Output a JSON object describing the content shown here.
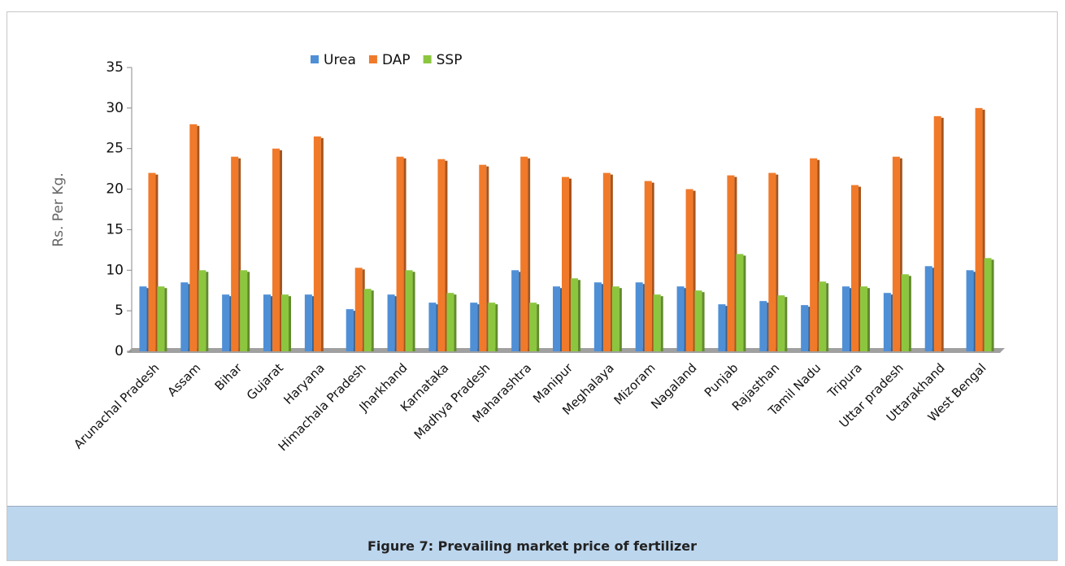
{
  "chart_data": {
    "type": "bar",
    "categories": [
      "Arunachal Pradesh",
      "Assam",
      "Bihar",
      "Gujarat",
      "Haryana",
      "Himachala Pradesh",
      "Jharkhand",
      "Karnataka",
      "Madhya Pradesh",
      "Maharashtra",
      "Manipur",
      "Meghalaya",
      "Mizoram",
      "Nagaland",
      "Punjab",
      "Rajasthan",
      "Tamil Nadu",
      "Tripura",
      "Uttar pradesh",
      "Uttarakhand",
      "West Bengal"
    ],
    "series": [
      {
        "name": "Urea",
        "color": "#4f8fd6",
        "values": [
          8,
          8.5,
          7,
          7,
          7,
          5.2,
          7,
          6,
          6,
          10,
          8,
          8.5,
          8.5,
          8,
          5.8,
          6.2,
          5.7,
          8,
          7.2,
          10.5,
          10
        ]
      },
      {
        "name": "DAP",
        "color": "#f07a2a",
        "values": [
          22,
          28,
          24,
          25,
          26.5,
          10.3,
          24,
          23.7,
          23,
          24,
          21.5,
          22,
          21,
          20,
          21.7,
          22,
          23.8,
          20.5,
          24,
          29,
          30
        ]
      },
      {
        "name": "SSP",
        "color": "#8cc63f",
        "values": [
          8,
          10,
          10,
          7,
          null,
          7.7,
          10,
          7.2,
          6,
          6,
          9,
          8,
          7,
          7.5,
          12,
          6.9,
          8.6,
          8,
          9.5,
          null,
          11.5
        ]
      }
    ],
    "y_label": "Rs. Per Kg.",
    "ylim": [
      0,
      35
    ],
    "yticks": [
      0,
      5,
      10,
      15,
      20,
      25,
      30,
      35
    ],
    "legend": "top"
  },
  "caption": "Figure 7: Prevailing market price of fertilizer"
}
